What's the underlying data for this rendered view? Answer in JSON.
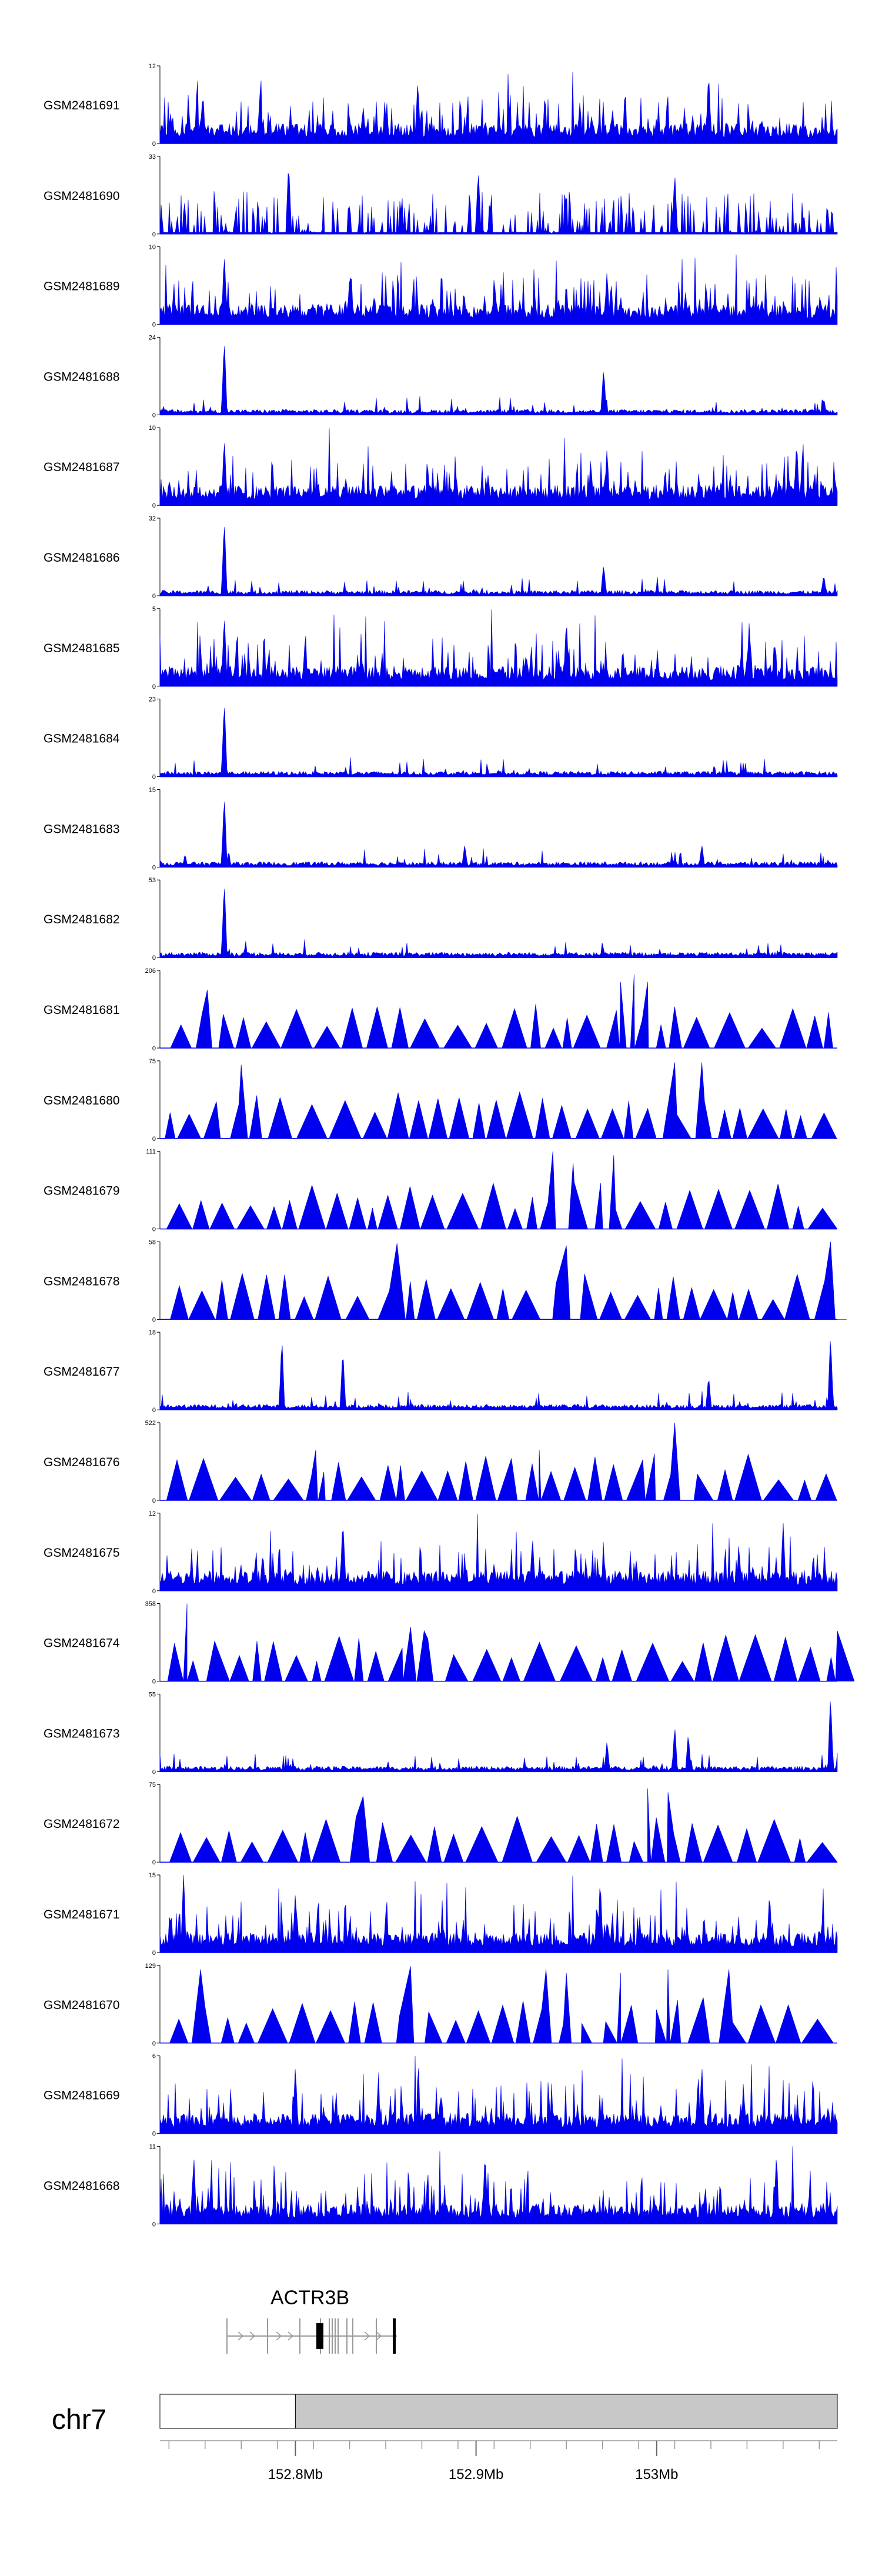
{
  "colors": {
    "signal": "#0000ee",
    "axis": "#000000",
    "ideogram_fill": "#c8c8c8",
    "gene": "#000000",
    "transcript": "#999999"
  },
  "chart_data": {
    "type": "area",
    "chromosome": "chr7",
    "gene": "ACTR3B",
    "x_range_mb": [
      152.725,
      153.1
    ],
    "x_ticks": [
      {
        "value": 152.8,
        "label": "152.8Mb"
      },
      {
        "value": 152.9,
        "label": "152.9Mb"
      },
      {
        "value": 153.0,
        "label": "153Mb"
      }
    ],
    "tracks": [
      {
        "name": "GSM2481691",
        "ymax": "12",
        "style": "dense",
        "peaks": [
          [
            0.81,
            0.95
          ],
          [
            0.3,
            0.5
          ],
          [
            0.62,
            0.55
          ]
        ]
      },
      {
        "name": "GSM2481690",
        "ymax": "33",
        "style": "sparse",
        "peaks": [
          [
            0.19,
            0.95
          ],
          [
            0.47,
            0.85
          ],
          [
            0.76,
            0.8
          ]
        ]
      },
      {
        "name": "GSM2481689",
        "ymax": "10",
        "style": "dense",
        "peaks": [
          [
            0.095,
            0.95
          ],
          [
            0.66,
            0.7
          ],
          [
            0.28,
            0.6
          ]
        ]
      },
      {
        "name": "GSM2481688",
        "ymax": "24",
        "style": "lowbg",
        "peaks": [
          [
            0.095,
            1.0
          ],
          [
            0.655,
            0.62
          ],
          [
            0.98,
            0.22
          ]
        ]
      },
      {
        "name": "GSM2481687",
        "ymax": "10",
        "style": "dense",
        "peaks": [
          [
            0.095,
            0.9
          ],
          [
            0.66,
            0.75
          ],
          [
            0.94,
            0.85
          ]
        ]
      },
      {
        "name": "GSM2481686",
        "ymax": "32",
        "style": "lowbg",
        "peaks": [
          [
            0.095,
            1.0
          ],
          [
            0.655,
            0.42
          ],
          [
            0.98,
            0.28
          ]
        ]
      },
      {
        "name": "GSM2481685",
        "ymax": "5",
        "style": "dense",
        "peaks": [
          [
            0.095,
            0.95
          ],
          [
            0.6,
            0.9
          ],
          [
            0.87,
            0.85
          ]
        ]
      },
      {
        "name": "GSM2481684",
        "ymax": "23",
        "style": "lowbg",
        "peaks": [
          [
            0.095,
            1.0
          ],
          [
            0.5,
            0.08
          ]
        ]
      },
      {
        "name": "GSM2481683",
        "ymax": "15",
        "style": "lowbg",
        "peaks": [
          [
            0.095,
            0.95
          ],
          [
            0.45,
            0.3
          ],
          [
            0.8,
            0.3
          ]
        ]
      },
      {
        "name": "GSM2481682",
        "ymax": "53",
        "style": "lowbg",
        "peaks": [
          [
            0.095,
            1.0
          ]
        ]
      },
      {
        "name": "GSM2481681",
        "ymax": "206",
        "style": "triangles",
        "peaks": [
          [
            0.07,
            0.75
          ],
          [
            0.68,
            0.85
          ],
          [
            0.7,
            0.95
          ],
          [
            0.72,
            0.85
          ]
        ]
      },
      {
        "name": "GSM2481680",
        "ymax": "75",
        "style": "triangles",
        "peaks": [
          [
            0.12,
            0.95
          ],
          [
            0.76,
            0.98
          ],
          [
            0.8,
            0.98
          ]
        ]
      },
      {
        "name": "GSM2481679",
        "ymax": "111",
        "style": "triangles",
        "peaks": [
          [
            0.58,
            1.0
          ],
          [
            0.61,
            0.85
          ],
          [
            0.67,
            0.95
          ]
        ]
      },
      {
        "name": "GSM2481678",
        "ymax": "58",
        "style": "triangles",
        "peaks": [
          [
            0.35,
            0.98
          ],
          [
            0.99,
            1.0
          ],
          [
            0.6,
            0.95
          ]
        ]
      },
      {
        "name": "GSM2481677",
        "ymax": "18",
        "style": "lowbg",
        "peaks": [
          [
            0.18,
            0.95
          ],
          [
            0.27,
            0.8
          ],
          [
            0.99,
            0.98
          ],
          [
            0.81,
            0.45
          ]
        ]
      },
      {
        "name": "GSM2481676",
        "ymax": "522",
        "style": "triangles",
        "peaks": [
          [
            0.23,
            0.65
          ],
          [
            0.56,
            0.65
          ],
          [
            0.73,
            0.6
          ],
          [
            0.76,
            1.0
          ]
        ]
      },
      {
        "name": "GSM2481675",
        "ymax": "12",
        "style": "dense",
        "peaks": [
          [
            0.27,
            0.95
          ],
          [
            0.92,
            0.9
          ],
          [
            0.55,
            0.7
          ]
        ]
      },
      {
        "name": "GSM2481674",
        "ymax": "358",
        "style": "triangles",
        "peaks": [
          [
            0.04,
            1.0
          ],
          [
            0.37,
            0.7
          ],
          [
            0.39,
            0.65
          ],
          [
            1.0,
            0.65
          ]
        ]
      },
      {
        "name": "GSM2481673",
        "ymax": "55",
        "style": "lowbg",
        "peaks": [
          [
            0.66,
            0.4
          ],
          [
            0.76,
            0.6
          ],
          [
            0.99,
            1.0
          ],
          [
            0.78,
            0.5
          ]
        ]
      },
      {
        "name": "GSM2481672",
        "ymax": "75",
        "style": "triangles",
        "peaks": [
          [
            0.72,
            0.95
          ],
          [
            0.75,
            0.9
          ],
          [
            0.3,
            0.85
          ]
        ]
      },
      {
        "name": "GSM2481671",
        "ymax": "15",
        "style": "dense",
        "peaks": [
          [
            0.65,
            0.98
          ],
          [
            0.2,
            0.8
          ],
          [
            0.9,
            0.8
          ]
        ]
      },
      {
        "name": "GSM2481670",
        "ymax": "129",
        "style": "triangles",
        "peaks": [
          [
            0.06,
            0.95
          ],
          [
            0.37,
            0.99
          ],
          [
            0.57,
            0.95
          ],
          [
            0.6,
            0.9
          ],
          [
            0.68,
            0.9
          ],
          [
            0.75,
            0.95
          ],
          [
            0.84,
            0.95
          ]
        ]
      },
      {
        "name": "GSM2481669",
        "ymax": "6",
        "style": "dense",
        "peaks": [
          [
            0.2,
            0.9
          ],
          [
            0.8,
            0.9
          ]
        ]
      },
      {
        "name": "GSM2481668",
        "ymax": "11",
        "style": "dense",
        "peaks": [
          [
            0.05,
            0.9
          ],
          [
            0.48,
            0.95
          ],
          [
            0.91,
            0.88
          ]
        ]
      }
    ]
  }
}
